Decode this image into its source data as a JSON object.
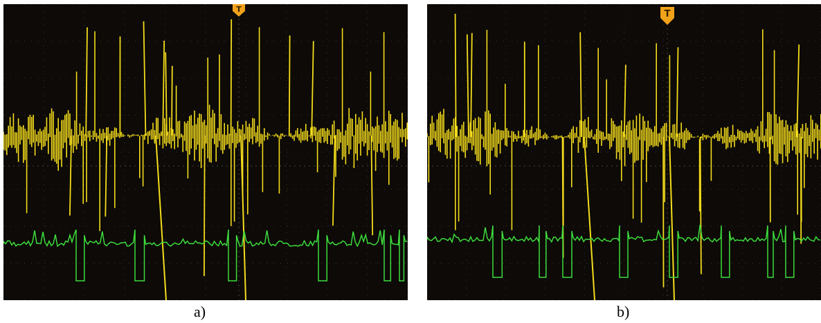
{
  "figure": {
    "panels": [
      {
        "id": "a",
        "caption": "a)",
        "trigger_marker": "T",
        "colors": {
          "screen": "#0d0a07",
          "grid": "#6b6153",
          "channel1": "#f4dc1c",
          "channel2": "#3ddc3d"
        },
        "channel2_pulses": 6,
        "seed": 7
      },
      {
        "id": "b",
        "caption": "b)",
        "trigger_marker": "T",
        "colors": {
          "screen": "#0d0a07",
          "grid": "#6b6153",
          "channel1": "#f4dc1c",
          "channel2": "#3ddc3d"
        },
        "channel2_pulses": 8,
        "seed": 19
      }
    ]
  }
}
